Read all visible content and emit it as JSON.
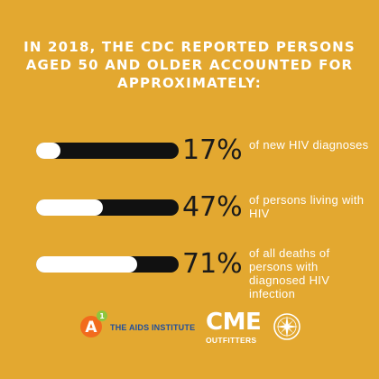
{
  "headline": "In 2018, the CDC reported persons aged 50 and older accounted for approximately:",
  "stats": [
    {
      "value": "17%",
      "fraction": 0.17,
      "text": "of new HIV diagnoses"
    },
    {
      "value": "47%",
      "fraction": 0.47,
      "text": "of persons living with HIV"
    },
    {
      "value": "71%",
      "fraction": 0.71,
      "text": "of all deaths of persons with diagnosed HIV infection"
    }
  ],
  "logos": {
    "aids_institute": {
      "mark": "A",
      "superscript": "1",
      "name": "THE AIDS INSTITUTE"
    },
    "cme": {
      "name": "CME",
      "sub": "OUTFITTERS"
    }
  },
  "colors": {
    "background": "#E3A830",
    "bar_track": "#111111",
    "bar_fill": "#FFFFFF",
    "aids_institute_text": "#1F4E9C"
  }
}
